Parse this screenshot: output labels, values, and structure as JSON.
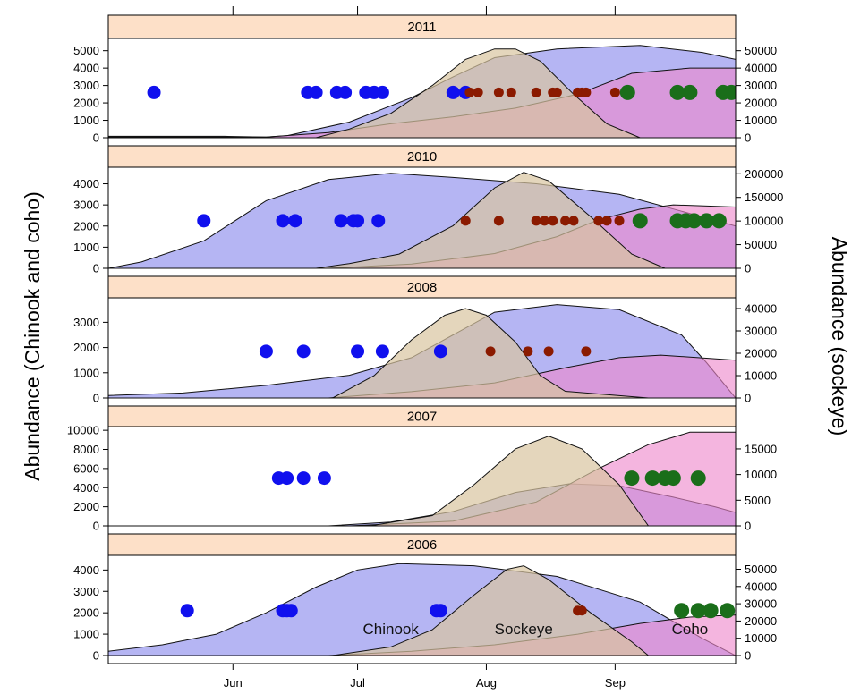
{
  "chart_data": {
    "type": "area",
    "ylabel_left": "Abundance (Chinook and coho)",
    "ylabel_right": "Abundance (sockeye)",
    "x_ticks": [
      "Jun",
      "Jul",
      "Aug",
      "Sep"
    ],
    "x_tick_days": [
      152,
      182,
      213,
      244
    ],
    "xlim": [
      122,
      273
    ],
    "colors": {
      "chinook": "#9999ee",
      "sockeye": "#d8c4a0",
      "coho": "#ee88cc",
      "pink_low": "#cc66cc",
      "dot_chinook": "#1010ee",
      "dot_sockeye": "#8b1a00",
      "dot_coho": "#1a6e1a",
      "strip": "#fde0c8"
    },
    "species_labels": [
      "Chinook",
      "Sockeye",
      "Coho"
    ],
    "panels": [
      {
        "year": "2011",
        "left_ticks": [
          0,
          1000,
          2000,
          3000,
          4000,
          5000
        ],
        "right_ticks": [
          0,
          10000,
          20000,
          30000,
          40000,
          50000
        ],
        "left_max": 5600,
        "right_max": 56000,
        "chinook": [
          [
            122,
            80
          ],
          [
            150,
            80
          ],
          [
            160,
            40
          ],
          [
            165,
            120
          ],
          [
            180,
            900
          ],
          [
            195,
            2300
          ],
          [
            205,
            3500
          ],
          [
            215,
            4600
          ],
          [
            230,
            5100
          ],
          [
            250,
            5300
          ],
          [
            265,
            4900
          ],
          [
            273,
            4500
          ]
        ],
        "coho": [
          [
            122,
            50
          ],
          [
            160,
            40
          ],
          [
            175,
            300
          ],
          [
            190,
            800
          ],
          [
            205,
            1200
          ],
          [
            220,
            1700
          ],
          [
            235,
            2500
          ],
          [
            248,
            3700
          ],
          [
            262,
            4000
          ],
          [
            273,
            4000
          ]
        ],
        "sockeye": [
          [
            172,
            0
          ],
          [
            180,
            5000
          ],
          [
            190,
            14000
          ],
          [
            200,
            30000
          ],
          [
            208,
            45000
          ],
          [
            215,
            51000
          ],
          [
            220,
            51000
          ],
          [
            226,
            44000
          ],
          [
            234,
            25000
          ],
          [
            242,
            8000
          ],
          [
            250,
            0
          ]
        ],
        "dots_chinook": [
          [
            133,
            2600
          ],
          [
            170,
            2600
          ],
          [
            172,
            2600
          ],
          [
            177,
            2600
          ],
          [
            179,
            2600
          ],
          [
            184,
            2600
          ],
          [
            186,
            2600
          ],
          [
            188,
            2600
          ],
          [
            205,
            2600
          ],
          [
            208,
            2600
          ]
        ],
        "dots_sockeye": [
          [
            209,
            2600
          ],
          [
            211,
            2600
          ],
          [
            216,
            2600
          ],
          [
            219,
            2600
          ],
          [
            225,
            2600
          ],
          [
            229,
            2600
          ],
          [
            230,
            2600
          ],
          [
            235,
            2600
          ],
          [
            236,
            2600
          ],
          [
            237,
            2600
          ],
          [
            244,
            2600
          ]
        ],
        "dots_coho": [
          [
            247,
            2600
          ],
          [
            259,
            2600
          ],
          [
            262,
            2600
          ],
          [
            270,
            2600
          ],
          [
            272,
            2600
          ]
        ]
      },
      {
        "year": "2010",
        "left_ticks": [
          0,
          1000,
          2000,
          3000,
          4000
        ],
        "right_ticks": [
          0,
          50000,
          100000,
          150000,
          200000
        ],
        "left_max": 4700,
        "right_max": 210000,
        "chinook": [
          [
            122,
            0
          ],
          [
            130,
            300
          ],
          [
            145,
            1300
          ],
          [
            160,
            3200
          ],
          [
            175,
            4200
          ],
          [
            190,
            4500
          ],
          [
            205,
            4300
          ],
          [
            225,
            4000
          ],
          [
            245,
            3500
          ],
          [
            260,
            2700
          ],
          [
            273,
            2000
          ]
        ],
        "coho": [
          [
            122,
            0
          ],
          [
            175,
            0
          ],
          [
            195,
            200
          ],
          [
            215,
            700
          ],
          [
            230,
            1500
          ],
          [
            240,
            2300
          ],
          [
            250,
            2800
          ],
          [
            258,
            3000
          ],
          [
            273,
            2900
          ]
        ],
        "sockeye": [
          [
            172,
            0
          ],
          [
            180,
            10000
          ],
          [
            192,
            30000
          ],
          [
            205,
            90000
          ],
          [
            215,
            170000
          ],
          [
            222,
            203000
          ],
          [
            228,
            185000
          ],
          [
            238,
            110000
          ],
          [
            248,
            30000
          ],
          [
            256,
            0
          ]
        ],
        "dots_chinook": [
          [
            145,
            2250
          ],
          [
            164,
            2250
          ],
          [
            167,
            2250
          ],
          [
            178,
            2250
          ],
          [
            181,
            2250
          ],
          [
            182,
            2250
          ],
          [
            187,
            2250
          ]
        ],
        "dots_sockeye": [
          [
            208,
            2250
          ],
          [
            216,
            2250
          ],
          [
            225,
            2250
          ],
          [
            227,
            2250
          ],
          [
            229,
            2250
          ],
          [
            232,
            2250
          ],
          [
            234,
            2250
          ],
          [
            240,
            2250
          ],
          [
            242,
            2250
          ],
          [
            245,
            2250
          ]
        ],
        "dots_coho": [
          [
            250,
            2250
          ],
          [
            259,
            2250
          ],
          [
            261,
            2250
          ],
          [
            263,
            2250
          ],
          [
            266,
            2250
          ],
          [
            269,
            2250
          ]
        ]
      },
      {
        "year": "2008",
        "left_ticks": [
          0,
          1000,
          2000,
          3000
        ],
        "right_ticks": [
          0,
          10000,
          20000,
          30000,
          40000
        ],
        "left_max": 3900,
        "right_max": 44000,
        "chinook": [
          [
            122,
            100
          ],
          [
            140,
            200
          ],
          [
            160,
            500
          ],
          [
            180,
            900
          ],
          [
            195,
            1600
          ],
          [
            205,
            2500
          ],
          [
            215,
            3400
          ],
          [
            230,
            3700
          ],
          [
            245,
            3500
          ],
          [
            260,
            2500
          ],
          [
            266,
            1400
          ],
          [
            273,
            0
          ]
        ],
        "coho": [
          [
            122,
            0
          ],
          [
            175,
            0
          ],
          [
            195,
            250
          ],
          [
            215,
            600
          ],
          [
            232,
            1200
          ],
          [
            245,
            1600
          ],
          [
            255,
            1700
          ],
          [
            273,
            1500
          ]
        ],
        "sockeye": [
          [
            176,
            0
          ],
          [
            186,
            10000
          ],
          [
            195,
            26000
          ],
          [
            203,
            37000
          ],
          [
            208,
            40000
          ],
          [
            213,
            37000
          ],
          [
            220,
            25000
          ],
          [
            226,
            10000
          ],
          [
            232,
            3000
          ],
          [
            252,
            0
          ]
        ],
        "dots_chinook": [
          [
            160,
            1850
          ],
          [
            169,
            1850
          ],
          [
            182,
            1850
          ],
          [
            188,
            1850
          ],
          [
            202,
            1850
          ]
        ],
        "dots_sockeye": [
          [
            214,
            1850
          ],
          [
            223,
            1850
          ],
          [
            228,
            1850
          ],
          [
            237,
            1850
          ]
        ],
        "dots_coho": []
      },
      {
        "year": "2007",
        "left_ticks": [
          0,
          2000,
          4000,
          6000,
          8000,
          10000
        ],
        "right_ticks": [
          0,
          5000,
          10000,
          15000
        ],
        "left_max": 10200,
        "right_max": 19000,
        "chinook": [
          [
            122,
            0
          ],
          [
            175,
            0
          ],
          [
            190,
            400
          ],
          [
            205,
            1500
          ],
          [
            220,
            3500
          ],
          [
            233,
            4400
          ],
          [
            245,
            4200
          ],
          [
            258,
            3000
          ],
          [
            268,
            2000
          ],
          [
            273,
            1400
          ]
        ],
        "coho": [
          [
            122,
            0
          ],
          [
            180,
            0
          ],
          [
            205,
            500
          ],
          [
            225,
            2500
          ],
          [
            240,
            6000
          ],
          [
            252,
            8500
          ],
          [
            262,
            9800
          ],
          [
            273,
            9800
          ]
        ],
        "sockeye": [
          [
            172,
            0
          ],
          [
            185,
            0
          ],
          [
            200,
            2000
          ],
          [
            210,
            8000
          ],
          [
            220,
            15000
          ],
          [
            228,
            17500
          ],
          [
            236,
            15000
          ],
          [
            245,
            8000
          ],
          [
            252,
            0
          ]
        ],
        "dots_chinook": [
          [
            163,
            5000
          ],
          [
            165,
            5000
          ],
          [
            169,
            5000
          ],
          [
            174,
            5000
          ]
        ],
        "dots_sockeye": [],
        "dots_coho": [
          [
            248,
            5000
          ],
          [
            253,
            5000
          ],
          [
            256,
            5000
          ],
          [
            258,
            5000
          ],
          [
            264,
            5000
          ]
        ]
      },
      {
        "year": "2006",
        "left_ticks": [
          0,
          1000,
          2000,
          3000,
          4000
        ],
        "right_ticks": [
          0,
          10000,
          20000,
          30000,
          40000,
          50000
        ],
        "left_max": 4600,
        "right_max": 57000,
        "chinook": [
          [
            122,
            200
          ],
          [
            135,
            500
          ],
          [
            148,
            1000
          ],
          [
            160,
            2000
          ],
          [
            172,
            3200
          ],
          [
            182,
            4000
          ],
          [
            192,
            4300
          ],
          [
            210,
            4200
          ],
          [
            230,
            3700
          ],
          [
            250,
            2500
          ],
          [
            265,
            800
          ],
          [
            273,
            0
          ]
        ],
        "coho": [
          [
            122,
            0
          ],
          [
            175,
            0
          ],
          [
            195,
            200
          ],
          [
            215,
            500
          ],
          [
            235,
            1000
          ],
          [
            250,
            1500
          ],
          [
            262,
            1800
          ],
          [
            273,
            1900
          ]
        ],
        "sockeye": [
          [
            176,
            0
          ],
          [
            190,
            5000
          ],
          [
            200,
            15000
          ],
          [
            210,
            35000
          ],
          [
            218,
            50000
          ],
          [
            222,
            52000
          ],
          [
            228,
            44000
          ],
          [
            238,
            25000
          ],
          [
            248,
            8000
          ],
          [
            252,
            0
          ]
        ],
        "dots_chinook": [
          [
            141,
            2100
          ],
          [
            164,
            2100
          ],
          [
            165,
            2100
          ],
          [
            166,
            2100
          ],
          [
            201,
            2100
          ],
          [
            202,
            2100
          ]
        ],
        "dots_sockeye": [
          [
            235,
            2100
          ],
          [
            236,
            2100
          ]
        ],
        "dots_coho": [
          [
            260,
            2100
          ],
          [
            264,
            2100
          ],
          [
            267,
            2100
          ],
          [
            271,
            2100
          ]
        ]
      }
    ]
  }
}
